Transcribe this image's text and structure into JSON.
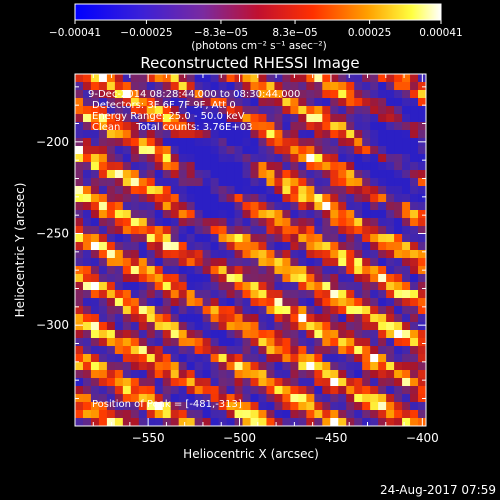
{
  "chart_data": {
    "type": "heatmap",
    "title": "Reconstructed RHESSI Image",
    "xlabel": "Heliocentric X (arcsec)",
    "ylabel": "Heliocentric Y (arcsec)",
    "xlim": [
      -590,
      -398
    ],
    "ylim": [
      -355,
      -163
    ],
    "x_ticks": [
      -550,
      -500,
      -450,
      -400
    ],
    "y_ticks": [
      -200,
      -250,
      -300
    ],
    "x_tick_labels": [
      "−550",
      "−500",
      "−450",
      "−400"
    ],
    "y_tick_labels": [
      "−200",
      "−250",
      "−300"
    ],
    "colorbar": {
      "colormap": "blue-purple-red-orange-yellow-white",
      "min": -0.00041,
      "max": 0.00041,
      "tick_labels": [
        "−0.00041",
        "−0.00025",
        "−8.3e−05",
        "8.3e−05",
        "0.00025",
        "0.00041"
      ],
      "unit_label": "(photons cm⁻² s⁻¹ asec⁻²)"
    },
    "annotations": [
      "9-Dec-2014 08:28:44.000 to 08:30:44.000",
      "Detectors: 3F 6F 7F 9F, Att 0",
      "Energy Range: 25.0 - 50.0 keV",
      "Clean     Total counts: 3.76E+03"
    ],
    "peak_label": "Position of Peak = [-481,-313]",
    "peak_position": [
      -481,
      -313
    ],
    "grid": false,
    "legend": "none"
  },
  "footer_timestamp": "24-Aug-2017 07:59"
}
